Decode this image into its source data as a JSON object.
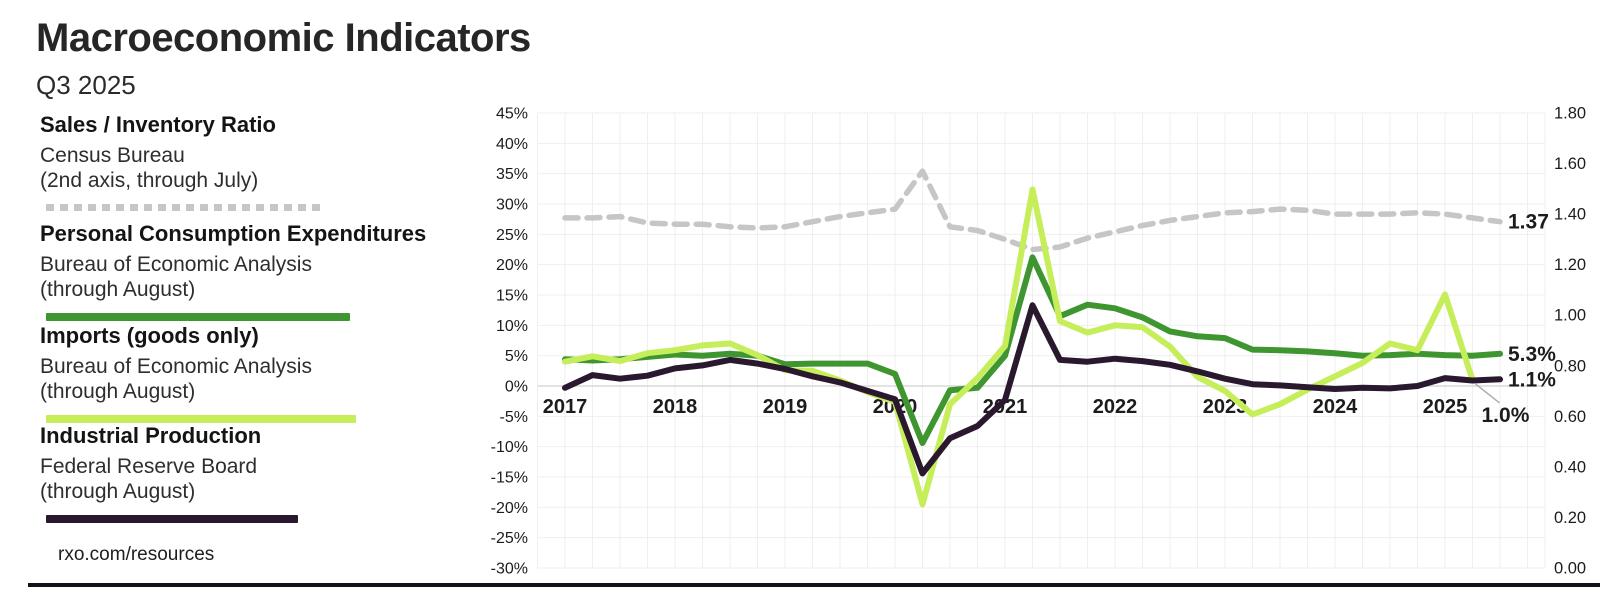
{
  "header": {
    "title": "Macroeconomic Indicators",
    "subtitle": "Q3 2025"
  },
  "legend": [
    {
      "name": "Sales / Inventory Ratio",
      "source": "Census Bureau",
      "period": "(2nd axis, through July)",
      "color": "#c6c6c6",
      "style": "dashed"
    },
    {
      "name": "Personal Consumption Expenditures",
      "source": "Bureau of Economic Analysis",
      "period": "(through August)",
      "color": "#3f9631",
      "style": "solid"
    },
    {
      "name": "Imports (goods only)",
      "source": "Bureau of Economic Analysis",
      "period": "(through August)",
      "color": "#c6ee5a",
      "style": "solid"
    },
    {
      "name": "Industrial Production",
      "source": "Federal Reserve Board",
      "period": "(through August)",
      "color": "#2a192e",
      "style": "solid"
    }
  ],
  "footer": {
    "link": "rxo.com/resources"
  },
  "chart_data": {
    "type": "line",
    "x_unit": "quarterly",
    "x_start_year": 2017,
    "grid": true,
    "year_ticks": [
      "2017",
      "2018",
      "2019",
      "2020",
      "2021",
      "2022",
      "2023",
      "2024",
      "2025"
    ],
    "left_axis": {
      "min": -30,
      "max": 45,
      "step": 5,
      "format": "percent",
      "ticks": [
        "45%",
        "40%",
        "35%",
        "30%",
        "25%",
        "20%",
        "15%",
        "10%",
        "5%",
        "0%",
        "-5%",
        "-10%",
        "-15%",
        "-20%",
        "-25%",
        "-30%"
      ]
    },
    "right_axis": {
      "min": 0.0,
      "max": 1.8,
      "step": 0.2,
      "ticks": [
        "1.80",
        "1.60",
        "1.40",
        "1.20",
        "1.00",
        "0.80",
        "0.60",
        "0.40",
        "0.20",
        "0.00"
      ]
    },
    "series": [
      {
        "name": "Sales / Inventory Ratio",
        "axis": "right",
        "color": "#c6c6c6",
        "dash": [
          13,
          9
        ],
        "width": 5.5,
        "end_label": "1.37",
        "values": [
          1.385,
          1.385,
          1.39,
          1.365,
          1.36,
          1.36,
          1.35,
          1.345,
          1.35,
          1.37,
          1.39,
          1.405,
          1.42,
          1.57,
          1.35,
          1.335,
          1.3,
          1.26,
          1.27,
          1.305,
          1.33,
          1.355,
          1.375,
          1.39,
          1.405,
          1.41,
          1.42,
          1.415,
          1.4,
          1.4,
          1.4,
          1.405,
          1.4,
          1.385,
          1.37
        ]
      },
      {
        "name": "Personal Consumption Expenditures",
        "axis": "left",
        "color": "#3f9631",
        "dash": null,
        "width": 6,
        "end_label": "5.3%",
        "values": [
          4.4,
          4.2,
          4.4,
          4.8,
          5.2,
          5.0,
          5.3,
          5.0,
          3.6,
          3.7,
          3.7,
          3.7,
          2.0,
          -9.4,
          -0.7,
          -0.3,
          5.0,
          21.2,
          11.5,
          13.4,
          12.8,
          11.3,
          9.0,
          8.2,
          7.9,
          6.0,
          5.9,
          5.7,
          5.4,
          5.0,
          5.1,
          5.3,
          5.1,
          5.0,
          5.3
        ]
      },
      {
        "name": "Imports (goods only)",
        "axis": "left",
        "color": "#c6ee5a",
        "dash": null,
        "width": 6,
        "end_label": "1.0%",
        "leader": true,
        "values": [
          4.0,
          4.9,
          4.1,
          5.4,
          5.9,
          6.7,
          7.0,
          5.1,
          2.6,
          2.5,
          0.9,
          -1.0,
          -2.6,
          -19.5,
          -3.0,
          1.3,
          6.6,
          32.4,
          10.7,
          8.8,
          10.0,
          9.7,
          6.5,
          1.5,
          -0.8,
          -4.7,
          -3.0,
          -0.6,
          1.6,
          3.8,
          7.0,
          5.9,
          15.1,
          1.0
        ]
      },
      {
        "name": "Industrial Production",
        "axis": "left",
        "color": "#2a192e",
        "dash": null,
        "width": 6,
        "end_label": "1.1%",
        "values": [
          -0.3,
          1.8,
          1.2,
          1.7,
          2.9,
          3.4,
          4.3,
          3.7,
          2.8,
          1.6,
          0.6,
          -0.8,
          -2.2,
          -14.4,
          -8.6,
          -6.6,
          -2.3,
          13.3,
          4.3,
          4.0,
          4.5,
          4.1,
          3.5,
          2.4,
          1.2,
          0.3,
          0.1,
          -0.2,
          -0.5,
          -0.3,
          -0.4,
          0.0,
          1.3,
          0.9,
          1.1
        ]
      }
    ]
  }
}
